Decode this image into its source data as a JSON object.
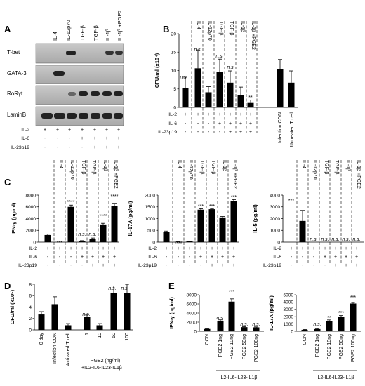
{
  "panel_letters": {
    "A": "A",
    "B": "B",
    "C": "C",
    "D": "D",
    "E": "E"
  },
  "treatments": [
    "IL-4",
    "IL-12p70",
    "TGF-β",
    "TGF-β",
    "IL-1β",
    "IL-1β +PGE2"
  ],
  "row_labels": {
    "il2": "IL-2",
    "il6": "IL-6",
    "il23": "IL-23p19"
  },
  "signs": {
    "il2": [
      "+",
      "+",
      "+",
      "+",
      "+",
      "+",
      "+"
    ],
    "il6": [
      "-",
      "-",
      "-",
      "+",
      "+",
      "+",
      "+"
    ],
    "il23": [
      "-",
      "-",
      "-",
      "-",
      "+",
      "+",
      "+"
    ]
  },
  "ns": "n.s.",
  "panel_a": {
    "bands": [
      "T-bet",
      "GATA-3",
      "RoRγt",
      "LaminB"
    ]
  },
  "panel_b": {
    "ylabel": "CFU/ml (x10⁴)",
    "extra_labels": [
      "Infection CON",
      "Untreated T cell"
    ],
    "treatment_labels": [
      "IL-4",
      "IL-12p70",
      "TGF-β",
      "TGF-β",
      "IL-1β",
      "IL-1β +PGE2"
    ],
    "yticks": [
      "0",
      "5",
      "10",
      "15",
      "20"
    ],
    "stars": "**"
  },
  "panel_c": {
    "treatment_labels": [
      "IL-4",
      "IL-12p70",
      "TGF-β",
      "TGF-β",
      "IL-1β",
      "IL-1β +PGE2"
    ],
    "c1": {
      "ylabel": "IFN-γ (pg/ml)",
      "yticks": [
        "0",
        "2000",
        "4000",
        "6000",
        "8000"
      ],
      "stars": [
        "***",
        "****",
        "****",
        "****"
      ]
    },
    "c2": {
      "ylabel": "IL-17A (pg/ml)",
      "yticks": [
        "0",
        "500",
        "1000",
        "1500",
        "2000"
      ],
      "stars": [
        "****",
        "***",
        "***",
        "***"
      ]
    },
    "c3": {
      "ylabel": "IL-5 (pg/ml)",
      "yticks": [
        "0",
        "1000",
        "2000",
        "3000",
        "4000"
      ],
      "stars": [
        "***"
      ]
    }
  },
  "panel_d": {
    "ylabel": "CFU/ml (x10⁵)",
    "yticks": [
      "0",
      "2",
      "4",
      "6",
      "8"
    ],
    "labels": [
      "0 day",
      "Infection CON",
      "Activated T cell",
      "1",
      "10",
      "50",
      "100"
    ],
    "group_label": "PGE2 (ng/ml)",
    "group_label2": "+IL2-IL6-IL23-IL1β",
    "stars": "***"
  },
  "panel_e": {
    "labels": [
      "CON",
      "PGE2 1ng",
      "PGE2 10ng",
      "PGE2 50ng",
      "PGE2 100ng"
    ],
    "group_label": "IL2-IL6-IL23-IL1β",
    "e1": {
      "ylabel": "IFN-γ (pg/ml)",
      "yticks": [
        "0",
        "2000",
        "4000",
        "6000",
        "8000"
      ],
      "stars": "***"
    },
    "e2": {
      "ylabel": "IL-17A (pg/ml)",
      "yticks": [
        "0",
        "1000",
        "2000",
        "3000",
        "4000",
        "5000"
      ],
      "stars": [
        "**",
        "***",
        "***"
      ]
    }
  },
  "chart_data": [
    {
      "panel": "B",
      "type": "bar",
      "ylabel": "CFU/ml (x10⁴)",
      "ylim": [
        0,
        20
      ],
      "categories": [
        "IL-2",
        "IL-4",
        "IL-12p70",
        "TGF-β",
        "TGF-β",
        "IL-1β",
        "IL-1β +PGE2",
        "Infection CON",
        "Untreated T cell"
      ],
      "values": [
        5.2,
        10.6,
        4.1,
        9.6,
        6.7,
        3.3,
        1.2,
        10.4,
        6.7
      ],
      "errors": [
        3.0,
        5.0,
        1.5,
        3.5,
        3.2,
        2.2,
        0.8,
        2.6,
        3.2
      ],
      "annotations": [
        "n.s.",
        "n.s.",
        "",
        "n.s.",
        "n.s.",
        "",
        "**",
        "",
        ""
      ]
    },
    {
      "panel": "C",
      "type": "bar",
      "ylabel": "IFN-γ (pg/ml)",
      "ylim": [
        0,
        8000
      ],
      "values": [
        1200,
        0,
        6000,
        200,
        600,
        3000,
        6200
      ],
      "errors": [
        150,
        0,
        300,
        50,
        100,
        200,
        400
      ]
    },
    {
      "panel": "C",
      "type": "bar",
      "ylabel": "IL-17A (pg/ml)",
      "ylim": [
        0,
        2000
      ],
      "values": [
        430,
        10,
        30,
        1380,
        1400,
        1050,
        1750
      ],
      "errors": [
        40,
        5,
        10,
        40,
        30,
        40,
        60
      ]
    },
    {
      "panel": "C",
      "type": "bar",
      "ylabel": "IL-5 (pg/ml)",
      "ylim": [
        0,
        4000
      ],
      "values": [
        0,
        1800,
        0,
        0,
        0,
        0,
        0
      ],
      "errors": [
        0,
        900,
        0,
        0,
        0,
        0,
        0
      ]
    },
    {
      "panel": "D",
      "type": "bar",
      "ylabel": "CFU/ml (x10⁵)",
      "ylim": [
        0,
        8
      ],
      "categories": [
        "0 day",
        "Infection CON",
        "Activated T cell",
        "1",
        "10",
        "50",
        "100"
      ],
      "values": [
        2.7,
        4.5,
        0.8,
        2.3,
        0.8,
        6.5,
        6.5
      ],
      "errors": [
        0.5,
        1.3,
        0.3,
        0.4,
        0.3,
        1.2,
        1.5
      ],
      "annotations": [
        "",
        "",
        "***",
        "n.s.",
        "***",
        "n.s.",
        "n.s."
      ]
    },
    {
      "panel": "E",
      "type": "bar",
      "ylabel": "IFN-γ (pg/ml)",
      "ylim": [
        0,
        8000
      ],
      "categories": [
        "CON",
        "PGE2 1ng",
        "PGE2 10ng",
        "PGE2 50ng",
        "PGE2 100ng"
      ],
      "values": [
        500,
        2300,
        6500,
        900,
        850
      ],
      "errors": [
        80,
        200,
        600,
        100,
        100
      ],
      "annotations": [
        "",
        "n.s.",
        "***",
        "n.s.",
        "n.s."
      ]
    },
    {
      "panel": "E",
      "type": "bar",
      "ylabel": "IL-17A (pg/ml)",
      "ylim": [
        0,
        5000
      ],
      "categories": [
        "CON",
        "PGE2 1ng",
        "PGE2 10ng",
        "PGE2 50ng",
        "PGE2 100ng"
      ],
      "values": [
        200,
        300,
        1400,
        2000,
        3800
      ],
      "errors": [
        40,
        60,
        150,
        150,
        150
      ],
      "annotations": [
        "",
        "n.s.",
        "**",
        "***",
        "***"
      ]
    }
  ]
}
